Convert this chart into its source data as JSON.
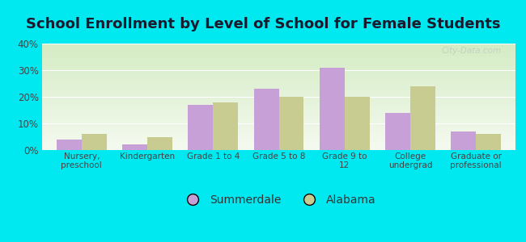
{
  "title": "School Enrollment by Level of School for Female Students",
  "categories": [
    "Nursery,\npreschool",
    "Kindergarten",
    "Grade 1 to 4",
    "Grade 5 to 8",
    "Grade 9 to\n12",
    "College\nundergrad",
    "Graduate or\nprofessional"
  ],
  "summerdale": [
    4,
    2,
    17,
    23,
    31,
    14,
    7
  ],
  "alabama": [
    6,
    5,
    18,
    20,
    20,
    24,
    6
  ],
  "summerdale_color": "#c8a0d8",
  "alabama_color": "#c8cc90",
  "figure_bg": "#00e8f0",
  "plot_bg_top": "#f5faf0",
  "plot_bg_bottom": "#d4ecc4",
  "grid_color": "#e8f0e8",
  "ylim": [
    0,
    40
  ],
  "yticks": [
    0,
    10,
    20,
    30,
    40
  ],
  "ytick_labels": [
    "0%",
    "10%",
    "20%",
    "30%",
    "40%"
  ],
  "legend_labels": [
    "Summerdale",
    "Alabama"
  ],
  "title_fontsize": 13,
  "bar_width": 0.38,
  "figsize": [
    6.5,
    3.0
  ],
  "dpi": 100,
  "watermark": "City-Data.com",
  "watermark_color": "#c0ccc0"
}
